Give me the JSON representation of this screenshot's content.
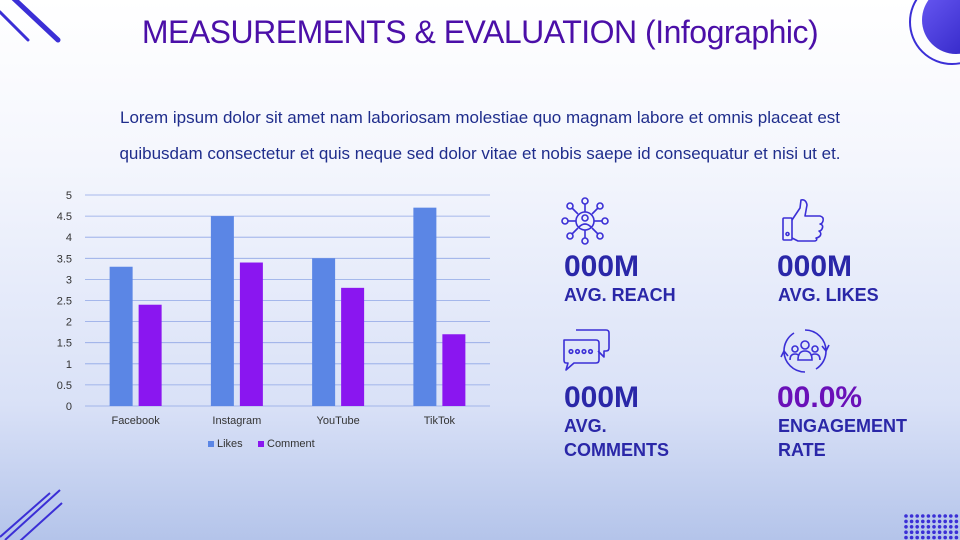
{
  "header": {
    "title": "MEASUREMENTS & EVALUATION (Infographic)"
  },
  "intro": {
    "line1": "Lorem ipsum dolor sit amet nam laboriosam molestiae quo magnam labore et omnis placeat est",
    "line2": "quibusdam consectetur et quis neque sed dolor vitae et nobis saepe id consequatur et nisi ut et."
  },
  "chart_data": {
    "type": "bar",
    "categories": [
      "Facebook",
      "Instagram",
      "YouTube",
      "TikTok"
    ],
    "series": [
      {
        "name": "Likes",
        "values": [
          3.3,
          4.5,
          3.5,
          4.7
        ],
        "color": "#5b86e5"
      },
      {
        "name": "Comment",
        "values": [
          2.4,
          3.4,
          2.8,
          1.7
        ],
        "color": "#8a16f0"
      }
    ],
    "yticks": [
      "0",
      "0.5",
      "1",
      "1.5",
      "2",
      "2.5",
      "3",
      "3.5",
      "4",
      "4.5",
      "5"
    ],
    "ylim": [
      0,
      5
    ],
    "grid": true,
    "legend": "bottom"
  },
  "stats": [
    {
      "icon": "network-icon",
      "value": "000M",
      "label_lines": [
        "AVG. REACH"
      ]
    },
    {
      "icon": "thumbs-up-icon",
      "value": "000M",
      "label_lines": [
        "AVG. LIKES"
      ]
    },
    {
      "icon": "comments-icon",
      "value": "000M",
      "label_lines": [
        "AVG.",
        "COMMENTS"
      ]
    },
    {
      "icon": "engagement-icon",
      "value": "00.0%",
      "label_lines": [
        "ENGAGEMENT",
        "RATE"
      ]
    }
  ],
  "colors": {
    "title": "#4b0fa8",
    "text": "#1f2d8c",
    "value_blue": "#2a27a8",
    "value_purple": "#6a10b8",
    "accent": "#3b2fd6"
  }
}
